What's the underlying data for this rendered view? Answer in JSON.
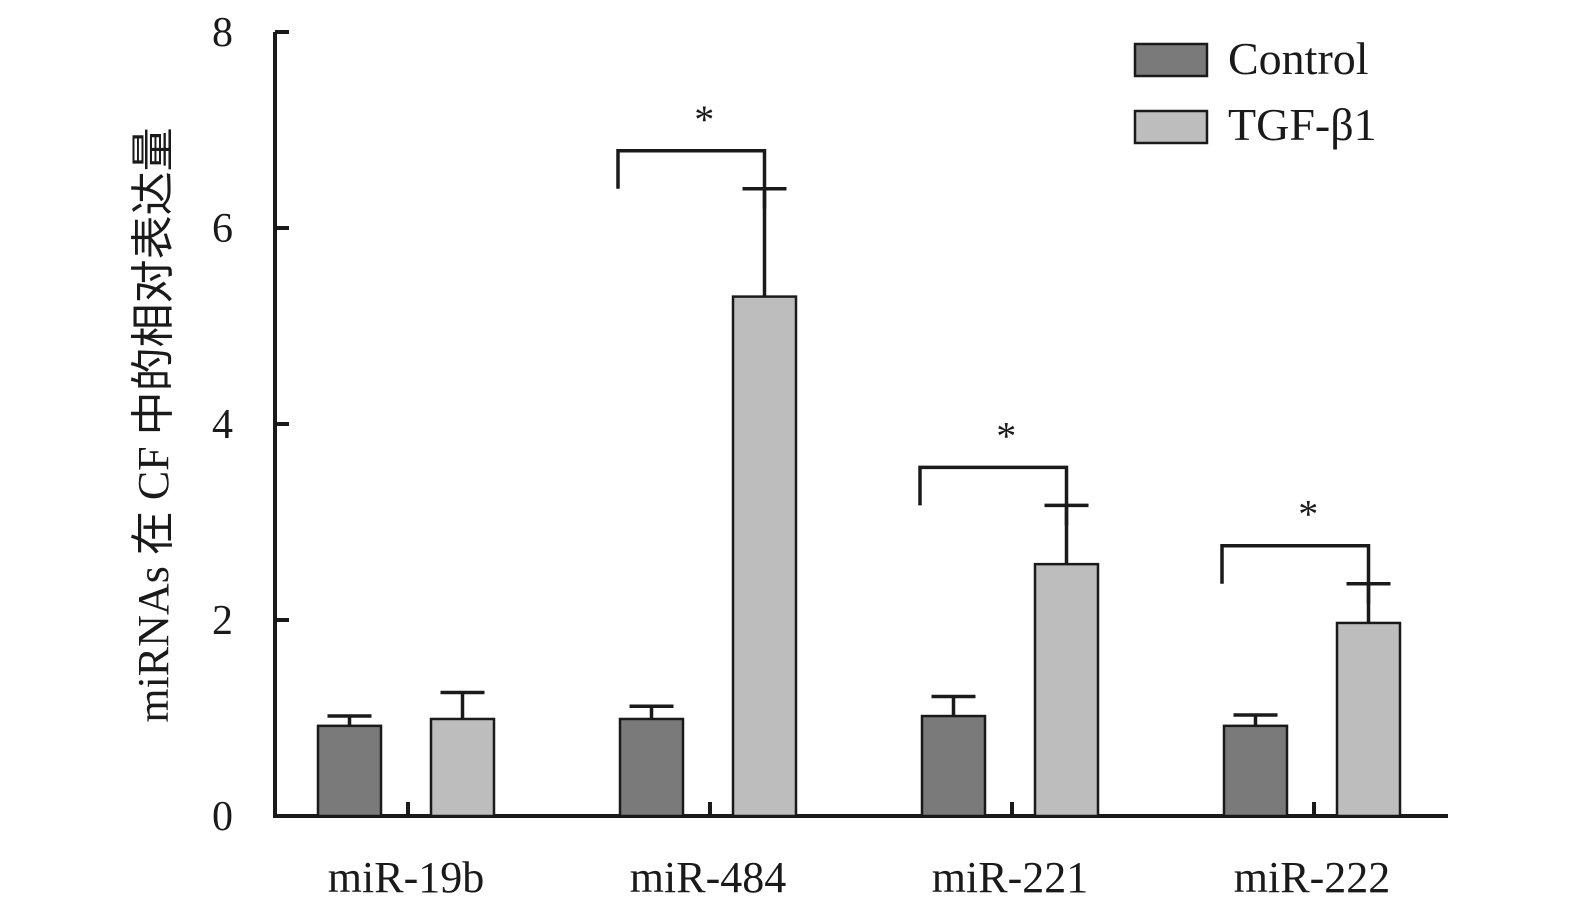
{
  "chart_data": {
    "type": "bar",
    "title": "",
    "xlabel": "",
    "ylabel": "miRNAs 在 CF 中的相对表达量",
    "ylim": [
      0,
      8
    ],
    "yticks": [
      0,
      2,
      4,
      6,
      8
    ],
    "legend_position": "top-right",
    "categories": [
      "miR-19b",
      "miR-484",
      "miR-221",
      "miR-222"
    ],
    "series": [
      {
        "name": "Control",
        "color": "#7a7a7a",
        "values": [
          0.92,
          0.99,
          1.02,
          0.92
        ],
        "errors": [
          0.1,
          0.13,
          0.2,
          0.11
        ]
      },
      {
        "name": "TGF-β1",
        "color": "#bdbdbd",
        "values": [
          0.99,
          5.3,
          2.57,
          1.97
        ],
        "errors": [
          0.27,
          1.1,
          0.6,
          0.4
        ]
      }
    ],
    "significance": [
      {
        "category": "miR-19b",
        "label": ""
      },
      {
        "category": "miR-484",
        "label": "*"
      },
      {
        "category": "miR-221",
        "label": "*"
      },
      {
        "category": "miR-222",
        "label": "*"
      }
    ]
  }
}
